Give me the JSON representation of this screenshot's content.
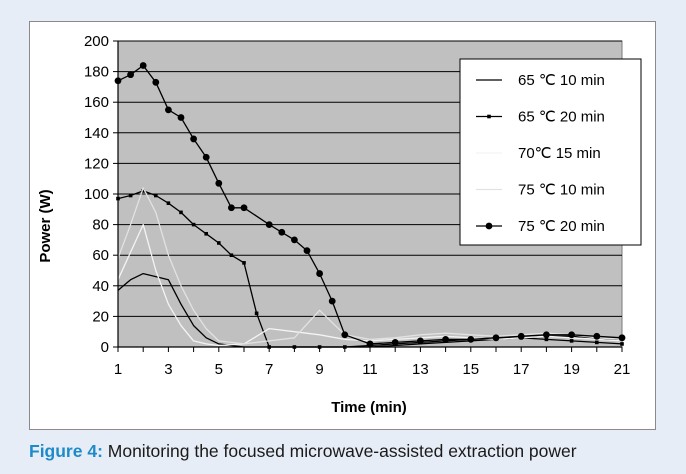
{
  "caption": {
    "label": "Figure 4:",
    "text": " Monitoring the focused microwave-assisted extraction power"
  },
  "colors": {
    "plot_background": "#c0c0c0",
    "gridline": "#000000",
    "caption_label": "#1d8bc9",
    "page_background": "#e6edf6"
  },
  "chart_data": {
    "type": "line",
    "xlabel": "Time (min)",
    "ylabel": "Power (W)",
    "xlim": [
      1,
      21
    ],
    "ylim": [
      0,
      200
    ],
    "x_ticks": [
      1,
      3,
      5,
      7,
      9,
      11,
      13,
      15,
      17,
      19,
      21
    ],
    "y_ticks": [
      0,
      20,
      40,
      60,
      80,
      100,
      120,
      140,
      160,
      180,
      200
    ],
    "grid": "horizontal",
    "legend_position": "top-right",
    "series": [
      {
        "name": "65 ℃ 10 min",
        "color": "#000000",
        "marker": "none",
        "x": [
          1,
          1.5,
          2,
          2.5,
          3,
          3.5,
          4,
          4.5,
          5,
          5.5,
          6,
          7,
          8,
          9,
          10,
          11,
          12,
          13,
          14,
          15,
          16,
          17,
          18,
          19,
          20,
          21
        ],
        "y": [
          37,
          44,
          48,
          46,
          44,
          28,
          14,
          6,
          2,
          1,
          0,
          0,
          0,
          0,
          0,
          0,
          1,
          2,
          3,
          4,
          5,
          6,
          7,
          7,
          6,
          4
        ]
      },
      {
        "name": "65 ℃ 20 min",
        "color": "#000000",
        "marker": "small-square",
        "x": [
          1,
          1.5,
          2,
          2.5,
          3,
          3.5,
          4,
          4.5,
          5,
          5.5,
          6,
          6.5,
          7,
          8,
          9,
          10,
          11,
          12,
          13,
          14,
          15,
          16,
          17,
          18,
          19,
          20,
          21
        ],
        "y": [
          97,
          99,
          102,
          99,
          94,
          88,
          80,
          74,
          68,
          60,
          55,
          22,
          0,
          0,
          0,
          0,
          1,
          2,
          3,
          4,
          5,
          6,
          6,
          5,
          4,
          3,
          2
        ]
      },
      {
        "name": "70℃ 15 min",
        "color": "#f4f4f4",
        "marker": "none",
        "x": [
          1,
          1.5,
          2,
          2.5,
          3,
          3.5,
          4,
          4.5,
          5,
          6,
          7,
          8,
          9,
          10,
          11,
          12,
          13,
          14,
          15,
          16,
          17,
          18,
          19,
          20,
          21
        ],
        "y": [
          44,
          62,
          80,
          50,
          28,
          14,
          4,
          2,
          1,
          2,
          12,
          10,
          8,
          5,
          4,
          5,
          6,
          7,
          6,
          5,
          6,
          7,
          6,
          5,
          4
        ]
      },
      {
        "name": "75 ℃ 10 min",
        "color": "#e2e2e2",
        "marker": "none",
        "x": [
          1,
          1.5,
          2,
          2.5,
          3,
          3.5,
          4,
          4.5,
          5,
          6,
          7,
          8,
          9,
          10,
          11,
          12,
          13,
          14,
          15,
          16,
          17,
          18,
          19,
          20,
          21
        ],
        "y": [
          58,
          80,
          104,
          88,
          60,
          40,
          24,
          12,
          4,
          2,
          4,
          6,
          24,
          8,
          5,
          6,
          8,
          9,
          8,
          7,
          8,
          9,
          8,
          6,
          5
        ]
      },
      {
        "name": "75 ℃ 20 min",
        "color": "#000000",
        "marker": "diamond",
        "x": [
          1,
          1.5,
          2,
          2.5,
          3,
          3.5,
          4,
          4.5,
          5,
          5.5,
          6,
          7,
          7.5,
          8,
          8.5,
          9,
          9.5,
          10,
          11,
          12,
          13,
          14,
          15,
          16,
          17,
          18,
          19,
          20,
          21
        ],
        "y": [
          174,
          178,
          184,
          173,
          155,
          150,
          136,
          124,
          107,
          91,
          91,
          80,
          75,
          70,
          63,
          48,
          30,
          8,
          2,
          3,
          4,
          5,
          5,
          6,
          7,
          8,
          8,
          7,
          6
        ]
      }
    ]
  }
}
